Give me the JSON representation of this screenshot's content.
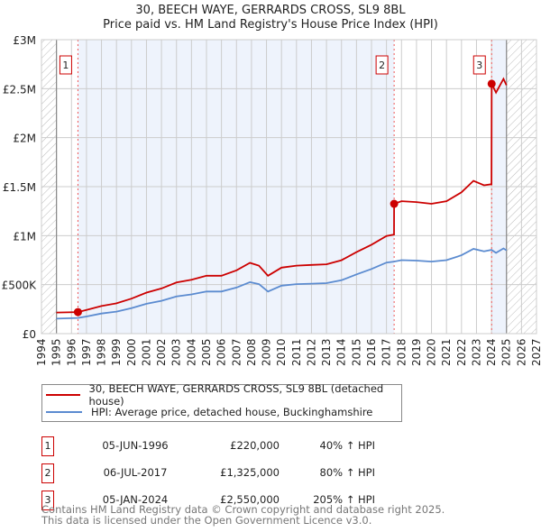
{
  "chart_data": {
    "type": "line",
    "title": "30, BEECH WAYE, GERRARDS CROSS, SL9 8BL",
    "subtitle": "Price paid vs. HM Land Registry's House Price Index (HPI)",
    "xlim": [
      1994,
      2027
    ],
    "ylim": [
      0,
      3000000
    ],
    "x_ticks": [
      "1994",
      "1995",
      "1996",
      "1997",
      "1998",
      "1999",
      "2000",
      "2001",
      "2002",
      "2003",
      "2004",
      "2005",
      "2006",
      "2007",
      "2008",
      "2009",
      "2010",
      "2011",
      "2012",
      "2013",
      "2014",
      "2015",
      "2016",
      "2017",
      "2018",
      "2019",
      "2020",
      "2021",
      "2022",
      "2023",
      "2024",
      "2025",
      "2026",
      "2027"
    ],
    "y_ticks": [
      {
        "value": 0,
        "label": "£0"
      },
      {
        "value": 500000,
        "label": "£500K"
      },
      {
        "value": 1000000,
        "label": "£1M"
      },
      {
        "value": 1500000,
        "label": "£1.5M"
      },
      {
        "value": 2000000,
        "label": "£2M"
      },
      {
        "value": 2500000,
        "label": "£2.5M"
      },
      {
        "value": 3000000,
        "label": "£3M"
      }
    ],
    "grid": true,
    "hatched_ranges": [
      [
        1994,
        1995
      ],
      [
        2025,
        2027
      ]
    ],
    "shaded_ranges": [
      [
        1996.43,
        2017.51
      ],
      [
        2024.01,
        2025
      ]
    ],
    "series": [
      {
        "name": "30, BEECH WAYE, GERRARDS CROSS, SL9 8BL (detached house)",
        "color": "#cc0000",
        "x": [
          1995,
          1996.43,
          1997,
          1998,
          1999,
          2000,
          2001,
          2002,
          2003,
          2004,
          2005,
          2006,
          2007,
          2007.9,
          2008.5,
          2009.1,
          2010,
          2011,
          2012,
          2013,
          2014,
          2015,
          2016,
          2017,
          2017.5,
          2017.51,
          2018,
          2019,
          2020,
          2021,
          2022,
          2022.8,
          2023.5,
          2024.0,
          2024.01,
          2024.3,
          2024.8,
          2025
        ],
        "values": [
          215000,
          220000,
          241000,
          282000,
          309000,
          357000,
          419000,
          461000,
          522000,
          550000,
          591000,
          591000,
          646000,
          722000,
          694000,
          591000,
          674000,
          694000,
          701000,
          708000,
          749000,
          832000,
          907000,
          997000,
          1011000,
          1325000,
          1352000,
          1343000,
          1325000,
          1352000,
          1442000,
          1560000,
          1514000,
          1525000,
          2550000,
          2460000,
          2600000,
          2535000
        ]
      },
      {
        "name": "HPI: Average price, detached house, Buckinghamshire",
        "color": "#5b8bd0",
        "x": [
          1995,
          1996.43,
          1997,
          1998,
          1999,
          2000,
          2001,
          2002,
          2003,
          2004,
          2005,
          2006,
          2007,
          2007.9,
          2008.5,
          2009.1,
          2010,
          2011,
          2012,
          2013,
          2014,
          2015,
          2016,
          2017,
          2017.5,
          2018,
          2019,
          2020,
          2021,
          2022,
          2022.8,
          2023.5,
          2024.0,
          2024.3,
          2024.8,
          2025
        ],
        "values": [
          153000,
          160000,
          175000,
          205000,
          225000,
          260000,
          305000,
          335000,
          380000,
          400000,
          430000,
          430000,
          470000,
          525000,
          505000,
          430000,
          490000,
          505000,
          510000,
          515000,
          545000,
          605000,
          660000,
          725000,
          735000,
          750000,
          745000,
          735000,
          750000,
          800000,
          865000,
          840000,
          855000,
          825000,
          870000,
          850000
        ]
      }
    ],
    "sales": [
      {
        "label": "1",
        "x": 1996.43,
        "value": 220000,
        "date": "05-JUN-1996",
        "price": "£220,000",
        "hpi": "40% ↑ HPI"
      },
      {
        "label": "2",
        "x": 2017.51,
        "value": 1325000,
        "date": "06-JUL-2017",
        "price": "£1,325,000",
        "hpi": "80% ↑ HPI"
      },
      {
        "label": "3",
        "x": 2024.01,
        "value": 2550000,
        "date": "05-JAN-2024",
        "price": "£2,550,000",
        "hpi": "205% ↑ HPI"
      }
    ]
  },
  "legend": {
    "price_label": "30, BEECH WAYE, GERRARDS CROSS, SL9 8BL (detached house)",
    "hpi_label": "HPI: Average price, detached house, Buckinghamshire",
    "price_color": "#cc0000",
    "hpi_color": "#5b8bd0"
  },
  "footer": {
    "line1": "Contains HM Land Registry data © Crown copyright and database right 2025.",
    "line2": "This data is licensed under the Open Government Licence v3.0."
  }
}
